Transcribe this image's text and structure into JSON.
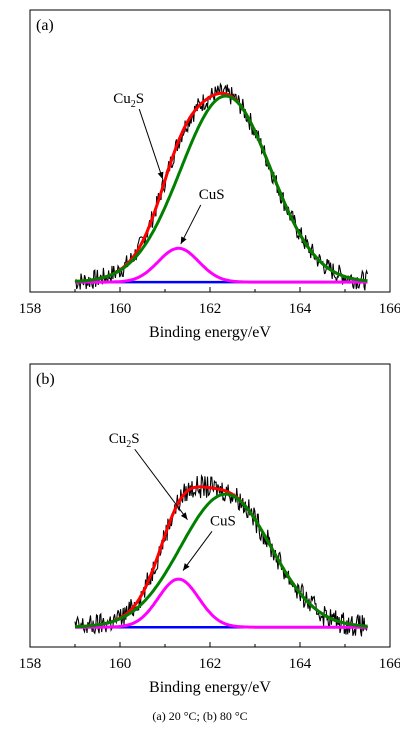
{
  "caption": "(a) 20 °C; (b) 80 °C",
  "colors": {
    "raw": "#000000",
    "envelope": "#ff0000",
    "cu2s": "#008000",
    "cus": "#ff00ff",
    "baseline": "#0000ff"
  },
  "chart_data": [
    {
      "type": "line",
      "panel_label": "(a)",
      "xlabel": "Binding energy/eV",
      "ylabel": "",
      "xlim": [
        158,
        166
      ],
      "ylim": [
        0,
        1
      ],
      "x_ticks": [
        158,
        160,
        162,
        164,
        166
      ],
      "grid": false,
      "x_range": [
        159,
        165.5
      ],
      "baseline": 0.035,
      "noise_amplitude": 0.035,
      "series": [
        {
          "name": "Cu2S",
          "kind": "gaussian",
          "center": 162.35,
          "height": 0.66,
          "sigma": 1.0
        },
        {
          "name": "CuS",
          "kind": "gaussian",
          "center": 161.3,
          "height": 0.12,
          "sigma": 0.45
        }
      ],
      "annotations": [
        {
          "base": "Cu",
          "sub": "2",
          "tail": "S",
          "label_x": 159.85,
          "label_y": 0.67,
          "target_x": 160.95,
          "target_y": 0.4
        },
        {
          "base": "CuS",
          "sub": "",
          "tail": "",
          "label_x": 161.75,
          "label_y": 0.33,
          "target_x": 161.35,
          "target_y": 0.17
        }
      ]
    },
    {
      "type": "line",
      "panel_label": "(b)",
      "xlabel": "Binding energy/eV",
      "ylabel": "",
      "xlim": [
        158,
        166
      ],
      "ylim": [
        0,
        1
      ],
      "x_ticks": [
        158,
        160,
        162,
        164,
        166
      ],
      "grid": false,
      "x_range": [
        159,
        165.5
      ],
      "baseline": 0.07,
      "noise_amplitude": 0.04,
      "series": [
        {
          "name": "Cu2S",
          "kind": "gaussian",
          "center": 162.35,
          "height": 0.47,
          "sigma": 1.0
        },
        {
          "name": "CuS",
          "kind": "gaussian",
          "center": 161.3,
          "height": 0.17,
          "sigma": 0.45
        }
      ],
      "annotations": [
        {
          "base": "Cu",
          "sub": "2",
          "tail": "S",
          "label_x": 159.75,
          "label_y": 0.72,
          "target_x": 161.5,
          "target_y": 0.45
        },
        {
          "base": "CuS",
          "sub": "",
          "tail": "",
          "label_x": 162.0,
          "label_y": 0.43,
          "target_x": 161.4,
          "target_y": 0.27
        }
      ]
    }
  ]
}
